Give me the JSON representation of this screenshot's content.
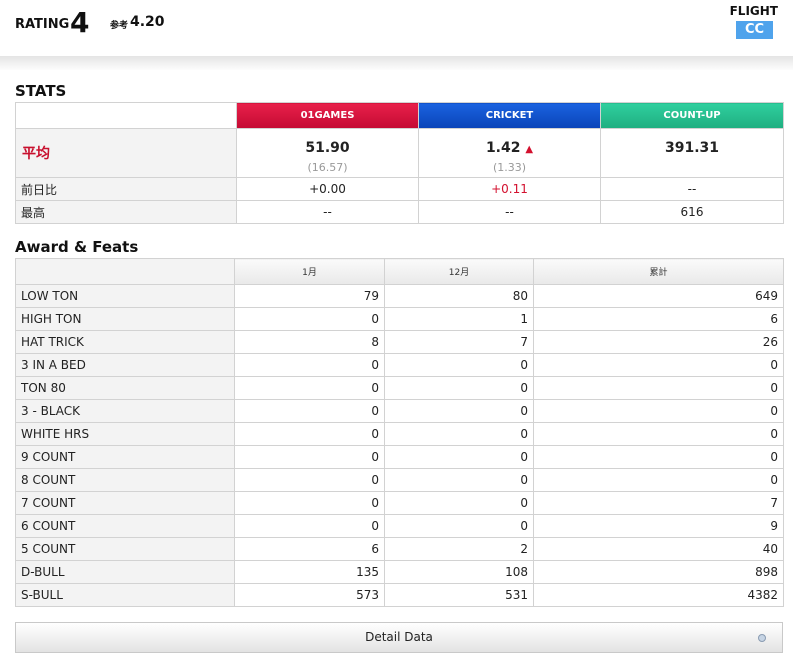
{
  "header": {
    "rating_label": "RATING",
    "rating_value": "4",
    "ref_label": "参考",
    "ref_value": "4.20",
    "flight_label": "FLIGHT",
    "flight_value": "CC"
  },
  "stats": {
    "title": "STATS",
    "categories": [
      "01GAMES",
      "CRICKET",
      "COUNT-UP"
    ],
    "avg_label": "平均",
    "averages": [
      "51.90",
      "1.42",
      "391.31"
    ],
    "avg_subs": [
      "(16.57)",
      "(1.33)",
      ""
    ],
    "cricket_trend_icon": "up-arrow-icon",
    "diff_label": "前日比",
    "diffs": [
      "+0.00",
      "+0.11",
      "--"
    ],
    "best_label": "最高",
    "bests": [
      "--",
      "--",
      "616"
    ],
    "colors": {
      "01games": "#d3173f",
      "cricket": "#1552d1",
      "countup": "#26c08f",
      "accent_red": "#c8102e"
    }
  },
  "award": {
    "title": "Award & Feats",
    "columns": [
      "1月",
      "12月",
      "累計"
    ],
    "rows": [
      {
        "label": "LOW TON",
        "m1": "79",
        "m12": "80",
        "total": "649"
      },
      {
        "label": "HIGH TON",
        "m1": "0",
        "m12": "1",
        "total": "6"
      },
      {
        "label": "HAT TRICK",
        "m1": "8",
        "m12": "7",
        "total": "26"
      },
      {
        "label": "3 IN A BED",
        "m1": "0",
        "m12": "0",
        "total": "0"
      },
      {
        "label": "TON 80",
        "m1": "0",
        "m12": "0",
        "total": "0"
      },
      {
        "label": "3 - BLACK",
        "m1": "0",
        "m12": "0",
        "total": "0"
      },
      {
        "label": "WHITE HRS",
        "m1": "0",
        "m12": "0",
        "total": "0"
      },
      {
        "label": "9 COUNT",
        "m1": "0",
        "m12": "0",
        "total": "0"
      },
      {
        "label": "8 COUNT",
        "m1": "0",
        "m12": "0",
        "total": "0"
      },
      {
        "label": "7 COUNT",
        "m1": "0",
        "m12": "0",
        "total": "7"
      },
      {
        "label": "6 COUNT",
        "m1": "0",
        "m12": "0",
        "total": "9"
      },
      {
        "label": "5 COUNT",
        "m1": "6",
        "m12": "2",
        "total": "40"
      },
      {
        "label": "D-BULL",
        "m1": "135",
        "m12": "108",
        "total": "898"
      },
      {
        "label": "S-BULL",
        "m1": "573",
        "m12": "531",
        "total": "4382"
      }
    ]
  },
  "detail": {
    "label": "Detail Data",
    "icon": "circle-icon"
  }
}
